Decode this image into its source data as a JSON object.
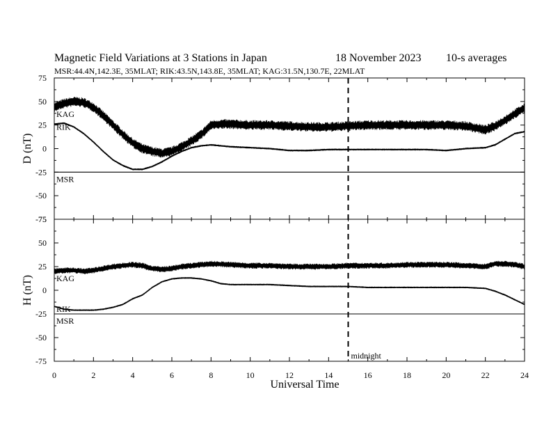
{
  "header": {
    "title": "Magnetic Field Variations at 3 Stations in Japan",
    "date": "18 November 2023",
    "averaging": "10-s averages",
    "stations_line": "MSR:44.4N,142.3E, 35MLAT;  RIK:43.5N,143.8E, 35MLAT;  KAG:31.5N,130.7E, 22MLAT"
  },
  "chart_data": [
    {
      "type": "line",
      "ylabel": "D (nT)",
      "xlabel": "",
      "xlim": [
        0,
        24
      ],
      "ylim": [
        -75,
        75
      ],
      "yticks": [
        -75,
        -50,
        -25,
        0,
        25,
        50,
        75
      ],
      "series": [
        {
          "name": "KAG",
          "noise": 5,
          "x": [
            0,
            0.5,
            1,
            1.5,
            2,
            2.5,
            3,
            3.5,
            4,
            4.5,
            5,
            5.5,
            6,
            6.5,
            7,
            7.5,
            8,
            8.5,
            9,
            10,
            11,
            12,
            13,
            14,
            15,
            16,
            17,
            18,
            19,
            20,
            21,
            22,
            22.5,
            23,
            23.5,
            24
          ],
          "y": [
            44,
            48,
            50,
            49,
            44,
            35,
            25,
            15,
            6,
            0,
            -3,
            -5,
            -3,
            2,
            8,
            15,
            25,
            26,
            26,
            25,
            25,
            24,
            23,
            23,
            24,
            25,
            25,
            25,
            25,
            25,
            24,
            20,
            24,
            30,
            37,
            43
          ]
        },
        {
          "name": "RIK",
          "noise": 0.6,
          "x": [
            0,
            0.5,
            1,
            1.5,
            2,
            2.5,
            3,
            3.5,
            4,
            4.5,
            5,
            5.5,
            6,
            6.5,
            7,
            7.5,
            8,
            9,
            10,
            11,
            12,
            13,
            14,
            15,
            16,
            17,
            18,
            19,
            20,
            20.5,
            21,
            22,
            22.5,
            23,
            23.5,
            24
          ],
          "y": [
            26,
            27,
            23,
            16,
            7,
            -3,
            -12,
            -18,
            -22,
            -22,
            -19,
            -14,
            -8,
            -3,
            1,
            3,
            4,
            2,
            1,
            0,
            -2,
            -2,
            -1,
            -1,
            -1,
            -1,
            -1,
            -1,
            -2,
            -1,
            0,
            1,
            4,
            10,
            16,
            18
          ]
        },
        {
          "name": "MSR",
          "noise": 0,
          "x": [
            0,
            24
          ],
          "y": [
            -25,
            -25
          ]
        }
      ]
    },
    {
      "type": "line",
      "ylabel": "H (nT)",
      "xlabel": "Universal Time",
      "xlim": [
        0,
        24
      ],
      "ylim": [
        -75,
        75
      ],
      "yticks": [
        -75,
        -50,
        -25,
        0,
        25,
        50,
        75
      ],
      "xticks": [
        0,
        2,
        4,
        6,
        8,
        10,
        12,
        14,
        16,
        18,
        20,
        22,
        24
      ],
      "series": [
        {
          "name": "KAG",
          "noise": 3,
          "x": [
            0,
            0.5,
            1,
            1.5,
            2,
            2.5,
            3,
            3.5,
            4,
            4.5,
            5,
            5.5,
            6,
            6.5,
            7,
            7.5,
            8,
            9,
            10,
            11,
            12,
            13,
            14,
            15,
            16,
            17,
            18,
            19,
            20,
            21,
            22,
            22.5,
            23,
            23.5,
            24
          ],
          "y": [
            20,
            21,
            21,
            20,
            21,
            23,
            25,
            26,
            27,
            26,
            23,
            22,
            23,
            25,
            26,
            27,
            28,
            27,
            26,
            26,
            25,
            25,
            25,
            26,
            26,
            26,
            27,
            27,
            27,
            26,
            25,
            28,
            28,
            27,
            25
          ]
        },
        {
          "name": "RIK",
          "noise": 0.5,
          "x": [
            0,
            0.5,
            1,
            1.5,
            2,
            2.5,
            3,
            3.5,
            4,
            4.5,
            5,
            5.5,
            6,
            6.5,
            7,
            7.5,
            8,
            8.5,
            9,
            10,
            11,
            12,
            13,
            14,
            15,
            16,
            17,
            18,
            19,
            20,
            21,
            22,
            22.5,
            23,
            23.5,
            24
          ],
          "y": [
            -17,
            -20,
            -21,
            -21,
            -21,
            -20,
            -18,
            -15,
            -9,
            -5,
            3,
            9,
            12,
            13,
            13,
            12,
            10,
            7,
            6,
            6,
            6,
            5,
            4,
            4,
            4,
            3,
            3,
            3,
            3,
            3,
            3,
            2,
            -1,
            -5,
            -10,
            -15
          ]
        },
        {
          "name": "MSR",
          "noise": 0,
          "x": [
            0,
            24
          ],
          "y": [
            -25,
            -25
          ]
        }
      ]
    }
  ],
  "midnight": {
    "x": 15,
    "label": "midnight"
  }
}
